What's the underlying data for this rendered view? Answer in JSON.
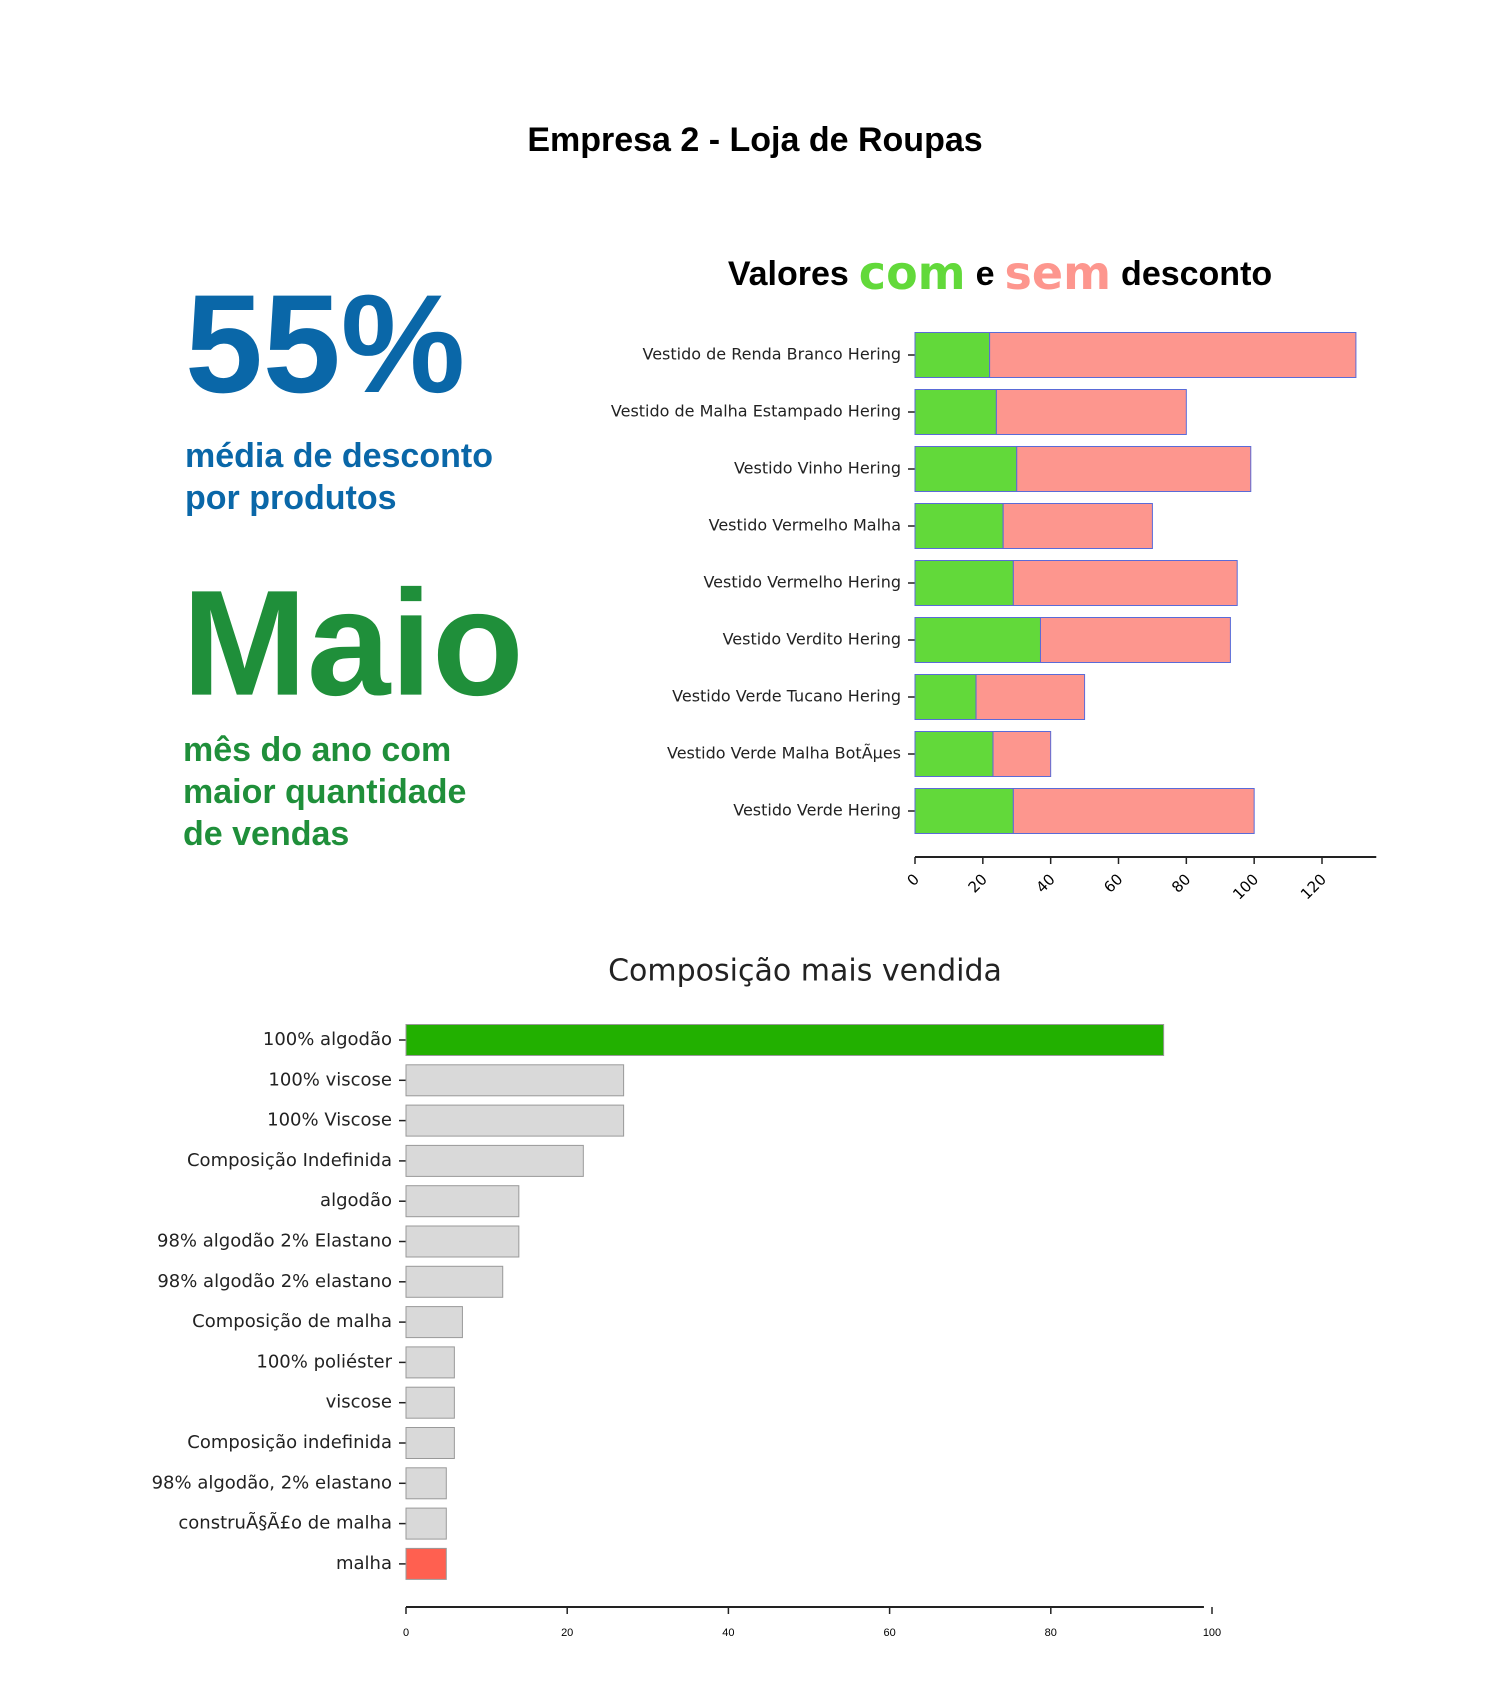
{
  "header": {
    "title": "Empresa 2 - Loja de Roupas"
  },
  "kpis": [
    {
      "value": "55%",
      "label_lines": [
        "média de desconto",
        "por produtos"
      ]
    },
    {
      "value": "Maio",
      "label_lines": [
        "mês do ano com",
        "maior quantidade",
        "de vendas"
      ]
    }
  ],
  "chart_data": [
    {
      "type": "stacked_barh",
      "title_parts": [
        "Valores",
        "e",
        "desconto"
      ],
      "categories": [
        "Vestido de Renda Branco Hering",
        "Vestido de Malha Estampado Hering",
        "Vestido Vinho Hering",
        "Vestido Vermelho Malha",
        "Vestido Vermelho Hering",
        "Vestido Verdito Hering",
        "Vestido Verde Tucano Hering",
        "Vestido Verde Malha BotÃµes",
        "Vestido Verde Hering"
      ],
      "series": [
        {
          "name": "com",
          "color": "#62d93a",
          "values": [
            22,
            24,
            30,
            26,
            29,
            37,
            18,
            23,
            29
          ]
        },
        {
          "name": "sem",
          "color": "#fd968e",
          "values": [
            108,
            56,
            69,
            44,
            66,
            56,
            32,
            17,
            71
          ]
        }
      ],
      "xlim": [
        0,
        136
      ],
      "xticks": [
        0,
        20,
        40,
        60,
        80,
        100,
        120
      ]
    },
    {
      "type": "barh",
      "title": "Composição mais vendida",
      "categories": [
        "100% algodão",
        "100% viscose",
        "100% Viscose",
        "Composição Indefinida",
        "algodão",
        "98% algodão 2% Elastano",
        "98% algodão 2% elastano",
        "Composição de malha",
        "100% poliéster",
        "viscose",
        "Composição indefinida",
        "98% algodão, 2% elastano",
        "construÃ§Ã£o de malha",
        "malha"
      ],
      "values": [
        94,
        27,
        27,
        22,
        14,
        14,
        12,
        7,
        6,
        6,
        6,
        5,
        5,
        5
      ],
      "colors": [
        "#22b000",
        "#d9d9d9",
        "#d9d9d9",
        "#d9d9d9",
        "#d9d9d9",
        "#d9d9d9",
        "#d9d9d9",
        "#d9d9d9",
        "#d9d9d9",
        "#d9d9d9",
        "#d9d9d9",
        "#d9d9d9",
        "#d9d9d9",
        "#ff6050"
      ],
      "xlim": [
        0,
        99
      ],
      "xticks": [
        0,
        20,
        40,
        60,
        80,
        100
      ]
    }
  ]
}
